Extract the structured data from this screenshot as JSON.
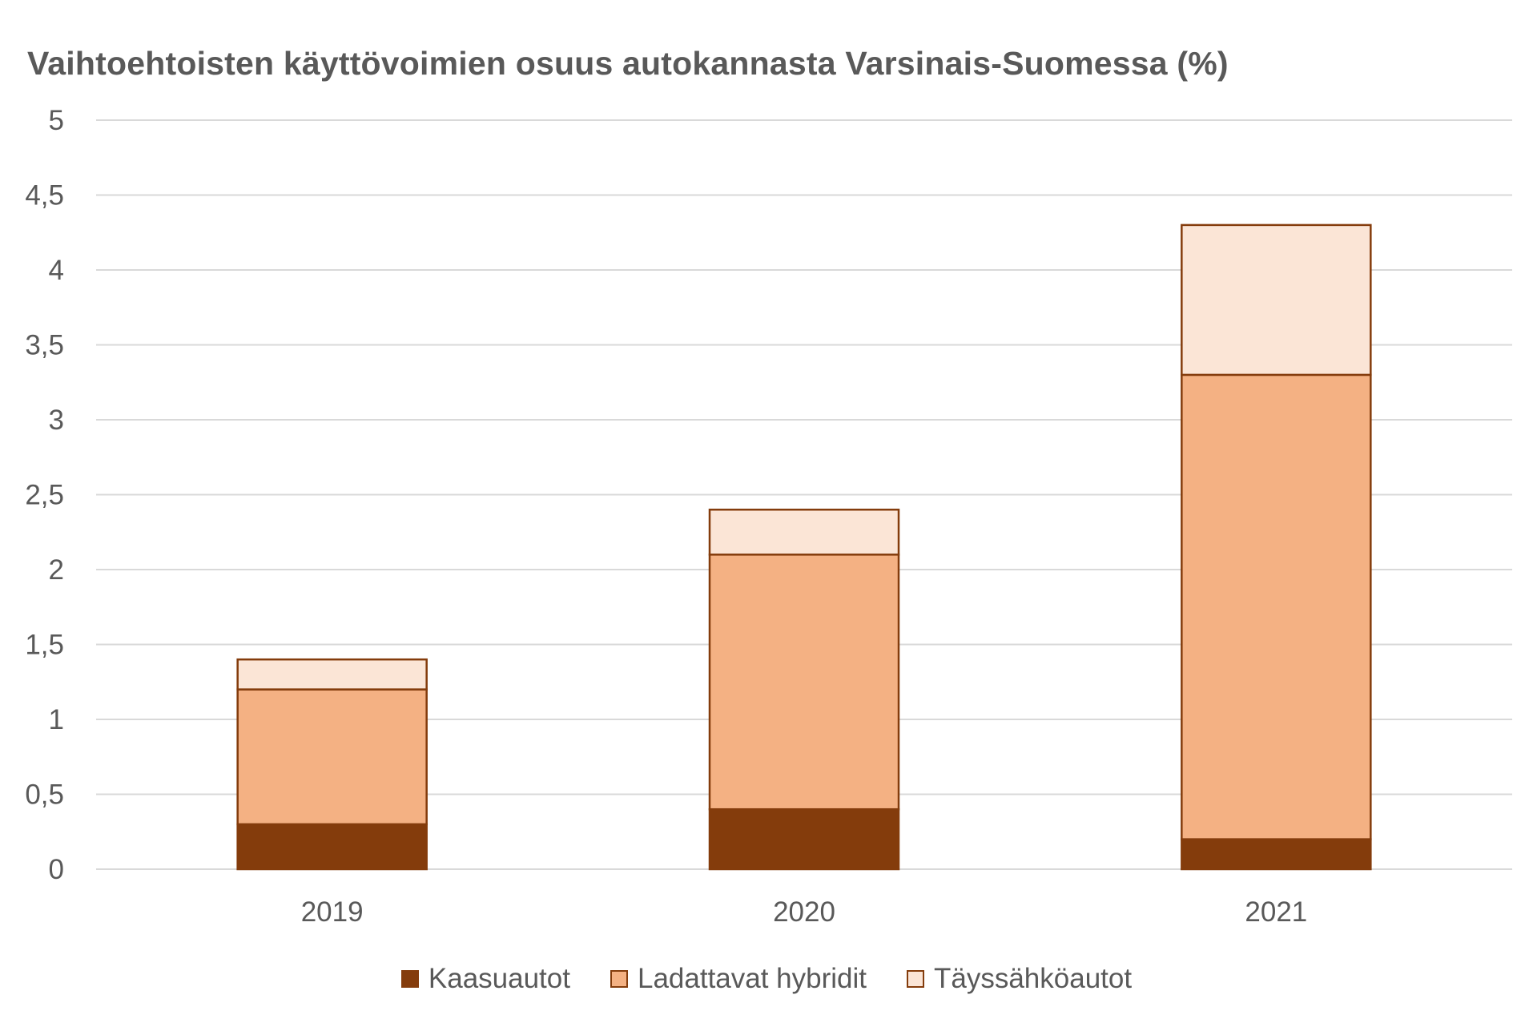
{
  "chart_data": {
    "type": "bar",
    "stacked": true,
    "title": "Vaihtoehtoisten käyttövoimien osuus autokannasta Varsinais-Suomessa (%)",
    "xlabel": "",
    "ylabel": "",
    "categories": [
      "2019",
      "2020",
      "2021"
    ],
    "ylim": [
      0,
      5
    ],
    "yticks": [
      0,
      0.5,
      1,
      1.5,
      2,
      2.5,
      3,
      3.5,
      4,
      4.5,
      5
    ],
    "ytick_labels": [
      "0",
      "0,5",
      "1",
      "1,5",
      "2",
      "2,5",
      "3",
      "3,5",
      "4",
      "4,5",
      "5"
    ],
    "grid": true,
    "legend_position": "bottom",
    "series": [
      {
        "name": "Kaasuautot",
        "values": [
          0.3,
          0.4,
          0.2
        ],
        "color": "#843C0C"
      },
      {
        "name": "Ladattavat hybridit",
        "values": [
          0.9,
          1.7,
          3.1
        ],
        "color": "#F4B183"
      },
      {
        "name": "Täyssähköautot",
        "values": [
          0.2,
          0.3,
          1.0
        ],
        "color": "#FBE5D6"
      }
    ],
    "colors": {
      "outline": "#843C0C",
      "grid": "#D9D9D9",
      "text": "#595959",
      "title": "#595959"
    }
  }
}
